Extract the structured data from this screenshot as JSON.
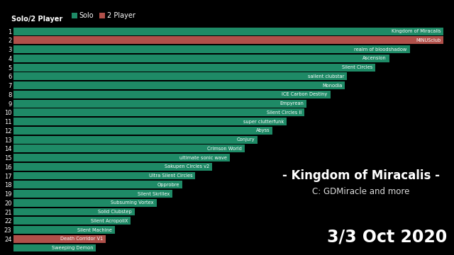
{
  "chart_data": {
    "type": "bar",
    "orientation": "horizontal",
    "title": "Solo/2 Player",
    "categories": [
      "Kingdom of Miracalis",
      "MINUSclub",
      "realm of bloodshadow",
      "Ascension",
      "Silent Circles",
      "sailent clubstar",
      "Monodia",
      "ICE Carbon Destiny",
      "Empyrean",
      "Silent Circles II",
      "super clutterfunk",
      "Abyss",
      "Conjury",
      "Crimson World",
      "ultimate sonic wave",
      "Sakupen Circles v2",
      "Ultra Silent Circles",
      "Opprobre",
      "Silent Skrillex",
      "Subsuming Vortex",
      "Solid Clubstep",
      "Silent AcropoliX",
      "Silent Machine",
      "Death Corridor V1",
      "Sweeping Demon"
    ],
    "ranks": [
      1,
      2,
      3,
      4,
      5,
      6,
      7,
      8,
      9,
      10,
      11,
      12,
      13,
      14,
      15,
      16,
      17,
      18,
      19,
      20,
      21,
      22,
      23,
      24,
      null
    ],
    "values": [
      611,
      611,
      563,
      534,
      514,
      474,
      471,
      450,
      416,
      413,
      388,
      368,
      347,
      328,
      307,
      282,
      258,
      240,
      226,
      203,
      172,
      166,
      144,
      131,
      117
    ],
    "series": [
      {
        "name": "Solo",
        "color": "#1e8a66"
      },
      {
        "name": "2 Player",
        "color": "#b0504a"
      }
    ],
    "colors": [
      "#1e8a66",
      "#b0504a",
      "#1e8a66",
      "#1e8a66",
      "#1e8a66",
      "#1e8a66",
      "#1e8a66",
      "#1e8a66",
      "#1e8a66",
      "#1e8a66",
      "#1e8a66",
      "#1e8a66",
      "#1e8a66",
      "#1e8a66",
      "#1e8a66",
      "#1e8a66",
      "#1e8a66",
      "#1e8a66",
      "#1e8a66",
      "#1e8a66",
      "#1e8a66",
      "#1e8a66",
      "#1e8a66",
      "#b0504a",
      "#1e8a66"
    ],
    "xlim": [
      0,
      611
    ],
    "tick_labels": "y",
    "legend": "upper left",
    "annotations": [
      "- Kingdom of Miracalis -",
      "C: GDMiracle and more",
      "3/3 Oct 2020"
    ]
  }
}
